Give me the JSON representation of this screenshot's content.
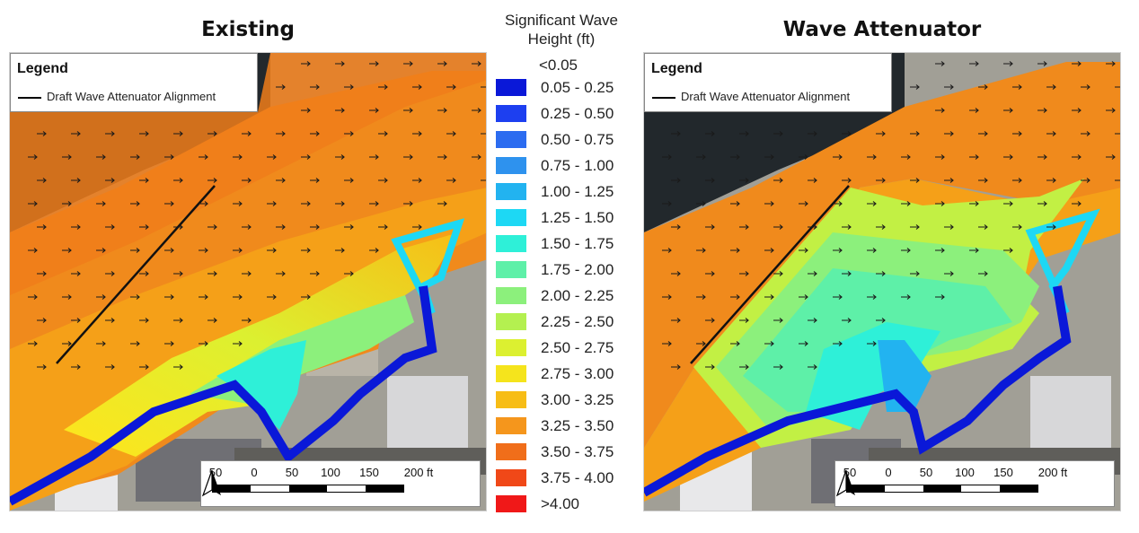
{
  "panels": [
    {
      "title": "Existing"
    },
    {
      "title": "Wave Attenuator"
    }
  ],
  "legend": {
    "title": "Legend",
    "item": "Draft Wave Attenuator Alignment"
  },
  "scale_bar": {
    "labels": [
      "50",
      "0",
      "50",
      "100",
      "150",
      "200 ft"
    ]
  },
  "key": {
    "title_line1": "Significant Wave",
    "title_line2": "Height (ft)",
    "no_swatch_label": "<0.05",
    "classes": [
      {
        "label": "0.05 - 0.25",
        "color": "#0a18d8"
      },
      {
        "label": "0.25 - 0.50",
        "color": "#1d3ff0"
      },
      {
        "label": "0.50 - 0.75",
        "color": "#2c6cf0"
      },
      {
        "label": "0.75 - 1.00",
        "color": "#2e92ee"
      },
      {
        "label": "1.00 - 1.25",
        "color": "#22b3f0"
      },
      {
        "label": "1.25 - 1.50",
        "color": "#1dd8f4"
      },
      {
        "label": "1.50 - 1.75",
        "color": "#2ef0d8"
      },
      {
        "label": "1.75 - 2.00",
        "color": "#5ef0a8"
      },
      {
        "label": "2.00 - 2.25",
        "color": "#8cf07c"
      },
      {
        "label": "2.25 - 2.50",
        "color": "#b4f050"
      },
      {
        "label": "2.50 - 2.75",
        "color": "#dcf030"
      },
      {
        "label": "2.75 - 3.00",
        "color": "#f5e41c"
      },
      {
        "label": "3.00 - 3.25",
        "color": "#f7bd16"
      },
      {
        "label": "3.25 - 3.50",
        "color": "#f5961c"
      },
      {
        "label": "3.50 - 3.75",
        "color": "#f06e1a"
      },
      {
        "label": "3.75 - 4.00",
        "color": "#f04818"
      },
      {
        "label": ">4.00",
        "color": "#f01818"
      }
    ]
  },
  "icons": {
    "north_arrow": "north-arrow-icon",
    "wave_direction": "wave-direction-arrow-icon"
  }
}
